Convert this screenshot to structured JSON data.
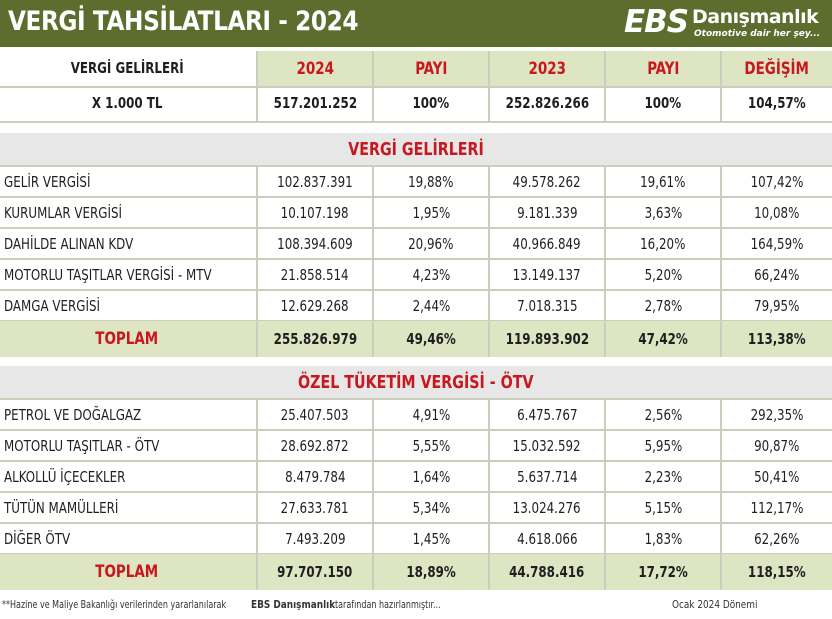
{
  "title": "VERGİ TAHSİLATLARI - 2024",
  "logo": {
    "ebs": "EBS",
    "brand": "Danışmanlık",
    "slogan": "Otomotive dair her şey..."
  },
  "header": {
    "row_label_1": "VERGİ GELİRLERİ",
    "row_label_2": "X 1.000 TL",
    "cols": [
      "2024",
      "PAYI",
      "2023",
      "PAYI",
      "DEĞİŞİM"
    ],
    "totals": [
      "517.201.252",
      "100%",
      "252.826.266",
      "100%",
      "104,57%"
    ]
  },
  "section1": {
    "title": "VERGİ GELİRLERİ",
    "rows": [
      {
        "label": "GELİR VERGİSİ",
        "v2024": "102.837.391",
        "p2024": "19,88%",
        "v2023": "49.578.262",
        "p2023": "19,61%",
        "change": "107,42%"
      },
      {
        "label": "KURUMLAR VERGİSİ",
        "v2024": "10.107.198",
        "p2024": "1,95%",
        "v2023": "9.181.339",
        "p2023": "3,63%",
        "change": "10,08%"
      },
      {
        "label": "DAHİLDE ALINAN KDV",
        "v2024": "108.394.609",
        "p2024": "20,96%",
        "v2023": "40.966.849",
        "p2023": "16,20%",
        "change": "164,59%"
      },
      {
        "label": "MOTORLU TAŞITLAR VERGİSİ - MTV",
        "v2024": "21.858.514",
        "p2024": "4,23%",
        "v2023": "13.149.137",
        "p2023": "5,20%",
        "change": "66,24%"
      },
      {
        "label": "DAMGA VERGİSİ",
        "v2024": "12.629.268",
        "p2024": "2,44%",
        "v2023": "7.018.315",
        "p2023": "2,78%",
        "change": "79,95%"
      }
    ],
    "total": {
      "label": "TOPLAM",
      "v2024": "255.826.979",
      "p2024": "49,46%",
      "v2023": "119.893.902",
      "p2023": "47,42%",
      "change": "113,38%"
    }
  },
  "section2": {
    "title": "ÖZEL TÜKETİM VERGİSİ - ÖTV",
    "rows": [
      {
        "label": "PETROL VE DOĞALGAZ",
        "v2024": "25.407.503",
        "p2024": "4,91%",
        "v2023": "6.475.767",
        "p2023": "2,56%",
        "change": "292,35%"
      },
      {
        "label": "MOTORLU TAŞITLAR - ÖTV",
        "v2024": "28.692.872",
        "p2024": "5,55%",
        "v2023": "15.032.592",
        "p2023": "5,95%",
        "change": "90,87%"
      },
      {
        "label": "ALKOLLÜ İÇECEKLER",
        "v2024": "8.479.784",
        "p2024": "1,64%",
        "v2023": "5.637.714",
        "p2023": "2,23%",
        "change": "50,41%"
      },
      {
        "label": "TÜTÜN MAMÜLLERİ",
        "v2024": "27.633.781",
        "p2024": "5,34%",
        "v2023": "13.024.276",
        "p2023": "5,15%",
        "change": "112,17%"
      },
      {
        "label": "DİĞER ÖTV",
        "v2024": "7.493.209",
        "p2024": "1,45%",
        "v2023": "4.618.066",
        "p2023": "1,83%",
        "change": "62,26%"
      }
    ],
    "total": {
      "label": "TOPLAM",
      "v2024": "97.707.150",
      "p2024": "18,89%",
      "v2023": "44.788.416",
      "p2023": "17,72%",
      "change": "118,15%"
    }
  },
  "footer": {
    "note_prefix": "**Hazine ve Maliye Bakanlığı verilerinden yararlanılarak ",
    "note_brand": "EBS Danışmanlık",
    "note_suffix": " tarafından hazırlanmıştır...",
    "period": "Ocak 2024 Dönemi"
  }
}
